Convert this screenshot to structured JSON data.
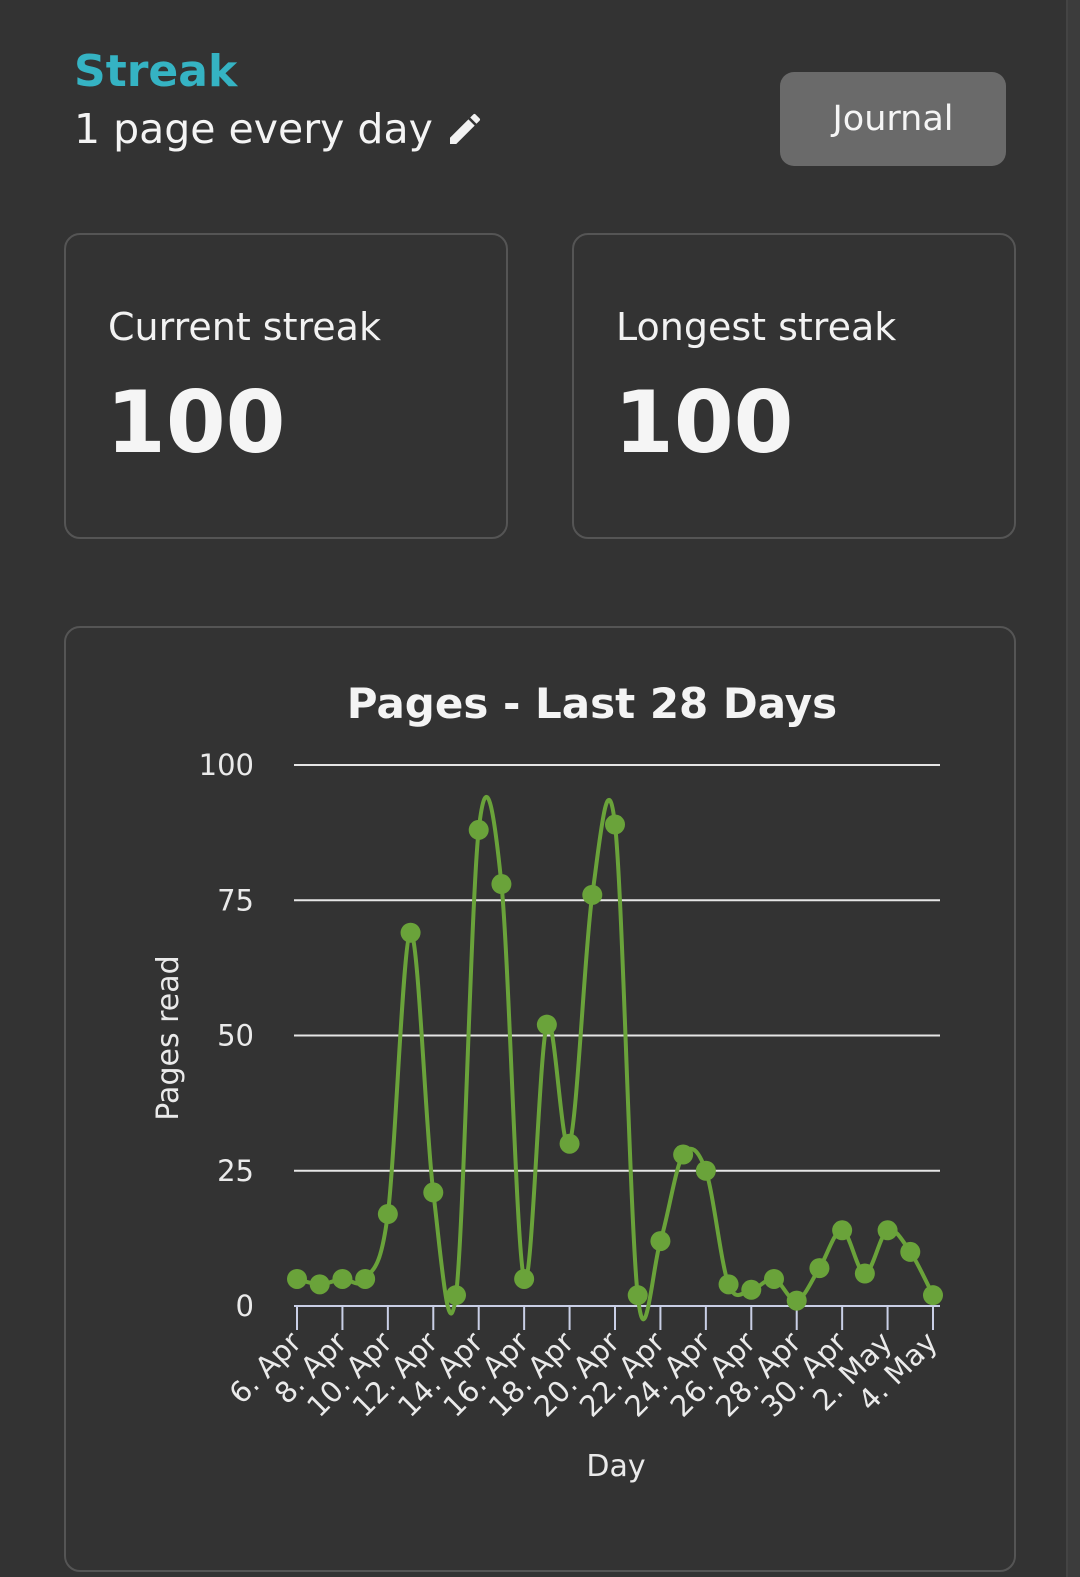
{
  "header": {
    "section_title": "Streak",
    "goal_text": "1 page every day",
    "journal_label": "Journal"
  },
  "stats": {
    "current_label": "Current streak",
    "current_value": "100",
    "longest_label": "Longest streak",
    "longest_value": "100"
  },
  "colors": {
    "accent": "#35b3c3",
    "series": "#6aa33a",
    "background": "#333333"
  },
  "icons": {
    "edit": "pencil-icon"
  },
  "chart_data": {
    "type": "line",
    "title": "Pages - Last 28 Days",
    "xlabel": "Day",
    "ylabel": "Pages read",
    "ylim": [
      0,
      100
    ],
    "yticks": [
      0,
      25,
      50,
      75,
      100
    ],
    "grid": true,
    "smooth": true,
    "x": [
      "6. Apr",
      "7. Apr",
      "8. Apr",
      "9. Apr",
      "10. Apr",
      "11. Apr",
      "12. Apr",
      "13. Apr",
      "14. Apr",
      "15. Apr",
      "16. Apr",
      "17. Apr",
      "18. Apr",
      "19. Apr",
      "20. Apr",
      "21. Apr",
      "22. Apr",
      "23. Apr",
      "24. Apr",
      "25. Apr",
      "26. Apr",
      "27. Apr",
      "28. Apr",
      "29. Apr",
      "30. Apr",
      "1. May",
      "2. May",
      "3. May",
      "4. May"
    ],
    "x_tick_labels": [
      "6. Apr",
      "8. Apr",
      "10. Apr",
      "12. Apr",
      "14. Apr",
      "16. Apr",
      "18. Apr",
      "20. Apr",
      "22. Apr",
      "24. Apr",
      "26. Apr",
      "28. Apr",
      "30. Apr",
      "2. May",
      "4. May"
    ],
    "series": [
      {
        "values": [
          5,
          4,
          5,
          5,
          17,
          69,
          21,
          2,
          88,
          78,
          5,
          52,
          30,
          76,
          89,
          2,
          12,
          28,
          25,
          4,
          3,
          5,
          1,
          7,
          14,
          6,
          14,
          10,
          2
        ]
      }
    ]
  }
}
